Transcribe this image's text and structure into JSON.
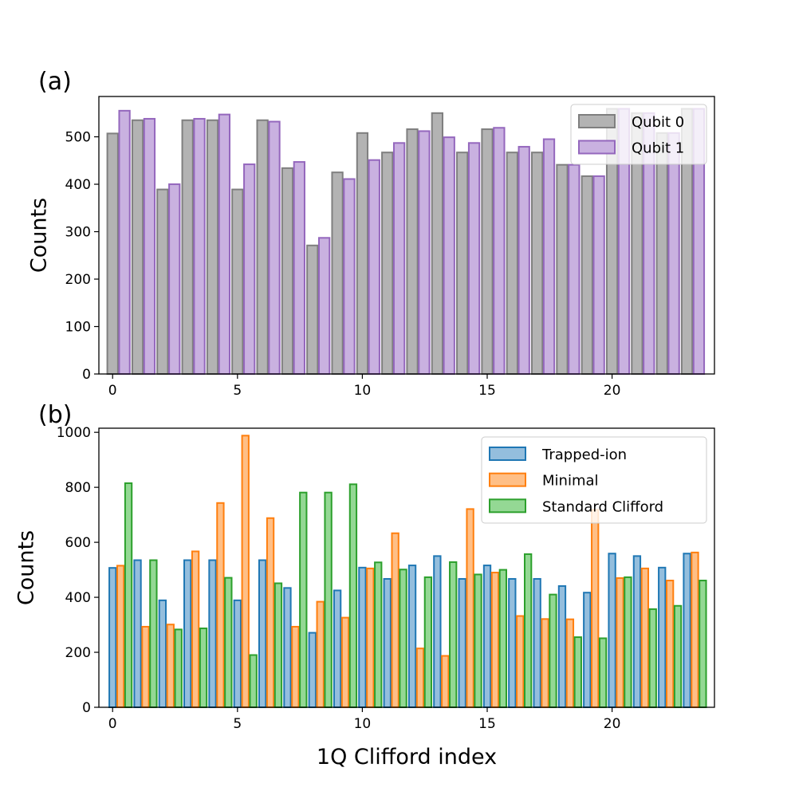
{
  "chart_data": [
    {
      "type": "bar",
      "panel_label": "(a)",
      "xlabel": "",
      "ylabel": "Counts",
      "xlim": [
        -0.55,
        24.1
      ],
      "ylim": [
        0,
        585
      ],
      "xticks": [
        0,
        5,
        10,
        15,
        20
      ],
      "yticks": [
        0,
        100,
        200,
        300,
        400,
        500
      ],
      "legend_position": "top-right",
      "x": [
        0,
        1,
        2,
        3,
        4,
        5,
        6,
        7,
        8,
        9,
        10,
        11,
        12,
        13,
        14,
        15,
        16,
        17,
        18,
        19,
        20,
        21,
        22,
        23
      ],
      "series": [
        {
          "name": "Qubit 0",
          "fill": "#b3b3b3",
          "stroke": "#7f7f7f",
          "values": [
            507,
            535,
            389,
            535,
            535,
            389,
            535,
            434,
            271,
            425,
            508,
            467,
            516,
            550,
            467,
            516,
            467,
            467,
            441,
            417,
            559,
            550,
            508,
            559
          ]
        },
        {
          "name": "Qubit 1",
          "fill": "#c9b1e0",
          "stroke": "#9467bd",
          "values": [
            555,
            538,
            400,
            538,
            547,
            442,
            532,
            447,
            287,
            411,
            451,
            487,
            512,
            499,
            487,
            519,
            479,
            495,
            441,
            417,
            559,
            550,
            508,
            559
          ]
        }
      ]
    },
    {
      "type": "bar",
      "panel_label": "(b)",
      "xlabel": "1Q Clifford index",
      "ylabel": "Counts",
      "xlim": [
        -0.55,
        24.1
      ],
      "ylim": [
        0,
        1015
      ],
      "xticks": [
        0,
        5,
        10,
        15,
        20
      ],
      "yticks": [
        0,
        200,
        400,
        600,
        800,
        1000
      ],
      "legend_position": "top-right",
      "x": [
        0,
        1,
        2,
        3,
        4,
        5,
        6,
        7,
        8,
        9,
        10,
        11,
        12,
        13,
        14,
        15,
        16,
        17,
        18,
        19,
        20,
        21,
        22,
        23
      ],
      "series": [
        {
          "name": "Trapped-ion",
          "fill": "#94bedd",
          "stroke": "#1f77b4",
          "values": [
            507,
            535,
            389,
            535,
            535,
            389,
            535,
            434,
            271,
            425,
            508,
            467,
            516,
            550,
            467,
            516,
            467,
            467,
            441,
            417,
            559,
            550,
            508,
            559
          ]
        },
        {
          "name": "Minimal",
          "fill": "#ffbf86",
          "stroke": "#ff7f0e",
          "values": [
            515,
            293,
            301,
            567,
            743,
            988,
            688,
            293,
            384,
            326,
            505,
            633,
            214,
            187,
            721,
            490,
            332,
            321,
            320,
            718,
            470,
            505,
            461,
            563
          ]
        },
        {
          "name": "Standard Clifford",
          "fill": "#94d894",
          "stroke": "#2ca02c",
          "values": [
            815,
            535,
            283,
            287,
            471,
            190,
            451,
            781,
            781,
            811,
            527,
            501,
            473,
            528,
            483,
            500,
            557,
            410,
            255,
            251,
            473,
            357,
            369,
            461
          ]
        }
      ]
    }
  ]
}
